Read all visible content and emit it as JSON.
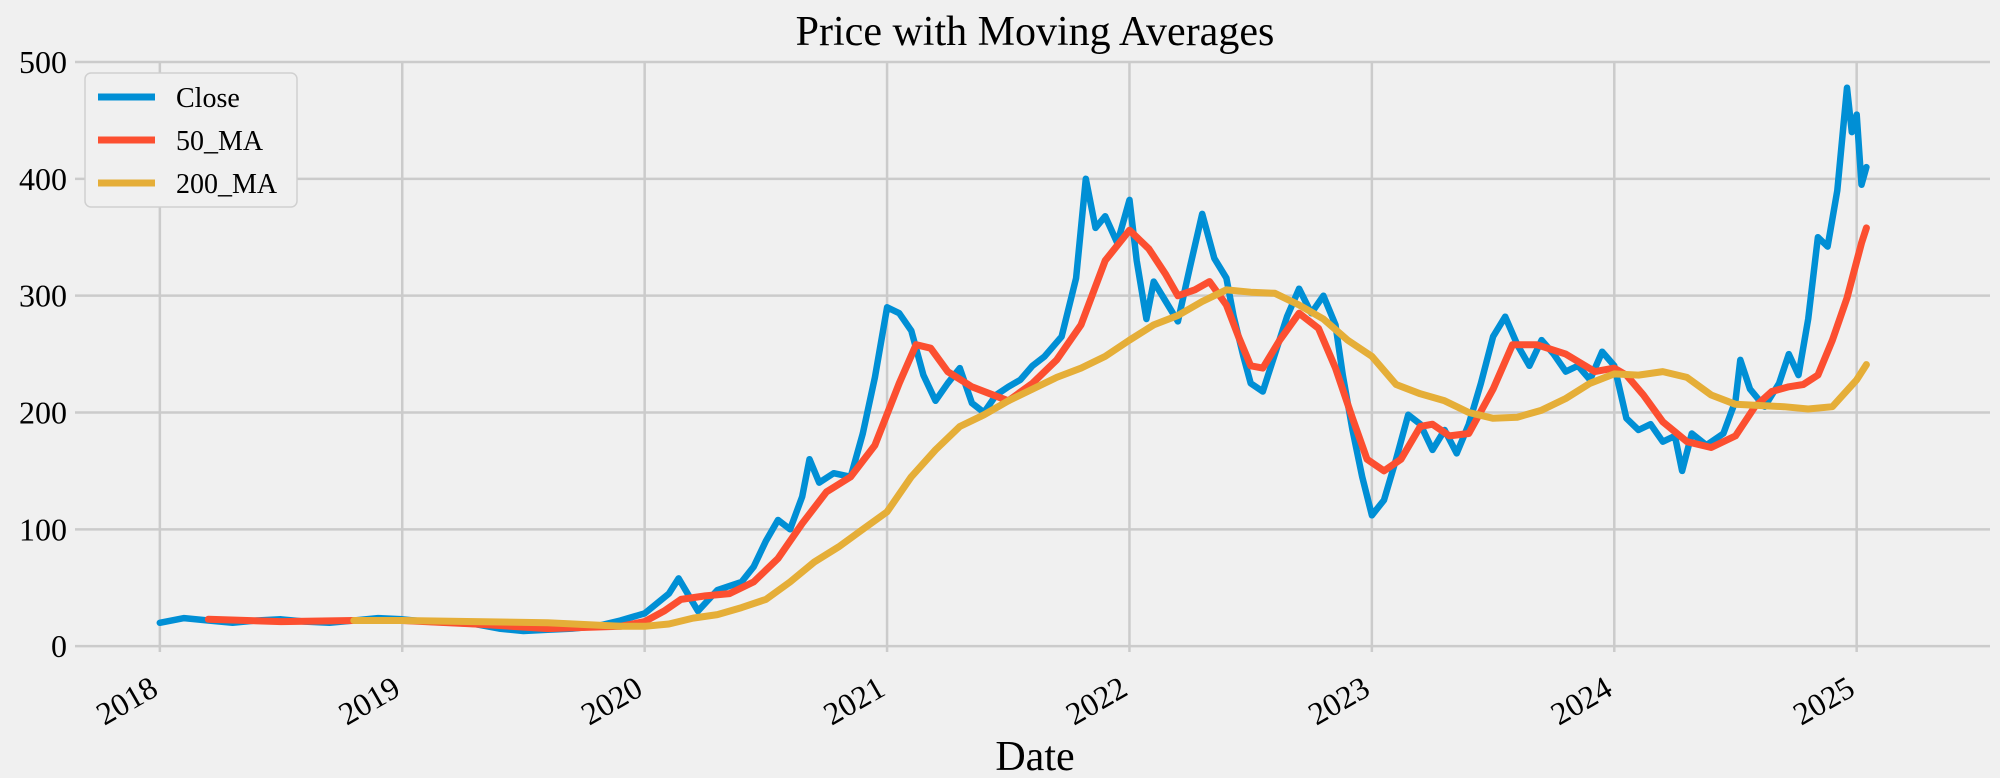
{
  "chart_data": {
    "type": "line",
    "title": "Price with Moving Averages",
    "xlabel": "Date",
    "ylabel": "",
    "xlim": [
      2017.65,
      2025.55
    ],
    "ylim": [
      -5,
      500
    ],
    "xticks": [
      2018,
      2019,
      2020,
      2021,
      2022,
      2023,
      2024,
      2025
    ],
    "xtick_labels": [
      "2018",
      "2019",
      "2020",
      "2021",
      "2022",
      "2023",
      "2024",
      "2025"
    ],
    "yticks": [
      0,
      100,
      200,
      300,
      400,
      500
    ],
    "ytick_labels": [
      "0",
      "100",
      "200",
      "300",
      "400",
      "500"
    ],
    "grid": true,
    "legend_position": "top-left",
    "series": [
      {
        "name": "Close",
        "color": "#008fd5",
        "points": [
          [
            2018.0,
            20
          ],
          [
            2018.1,
            24
          ],
          [
            2018.2,
            22
          ],
          [
            2018.3,
            20
          ],
          [
            2018.4,
            22
          ],
          [
            2018.5,
            23
          ],
          [
            2018.6,
            21
          ],
          [
            2018.7,
            20
          ],
          [
            2018.8,
            22
          ],
          [
            2018.9,
            24
          ],
          [
            2019.0,
            23
          ],
          [
            2019.1,
            21
          ],
          [
            2019.2,
            20
          ],
          [
            2019.3,
            19
          ],
          [
            2019.4,
            15
          ],
          [
            2019.5,
            13
          ],
          [
            2019.6,
            14
          ],
          [
            2019.7,
            15
          ],
          [
            2019.8,
            17
          ],
          [
            2019.9,
            22
          ],
          [
            2020.0,
            28
          ],
          [
            2020.1,
            45
          ],
          [
            2020.14,
            58
          ],
          [
            2020.18,
            44
          ],
          [
            2020.22,
            30
          ],
          [
            2020.3,
            48
          ],
          [
            2020.4,
            55
          ],
          [
            2020.45,
            68
          ],
          [
            2020.5,
            90
          ],
          [
            2020.55,
            108
          ],
          [
            2020.6,
            100
          ],
          [
            2020.65,
            128
          ],
          [
            2020.68,
            160
          ],
          [
            2020.72,
            140
          ],
          [
            2020.78,
            148
          ],
          [
            2020.85,
            145
          ],
          [
            2020.9,
            182
          ],
          [
            2020.95,
            230
          ],
          [
            2021.0,
            290
          ],
          [
            2021.05,
            285
          ],
          [
            2021.1,
            270
          ],
          [
            2021.15,
            232
          ],
          [
            2021.2,
            210
          ],
          [
            2021.25,
            225
          ],
          [
            2021.3,
            238
          ],
          [
            2021.35,
            208
          ],
          [
            2021.4,
            200
          ],
          [
            2021.45,
            215
          ],
          [
            2021.5,
            222
          ],
          [
            2021.55,
            228
          ],
          [
            2021.6,
            240
          ],
          [
            2021.65,
            248
          ],
          [
            2021.72,
            265
          ],
          [
            2021.78,
            315
          ],
          [
            2021.82,
            400
          ],
          [
            2021.86,
            358
          ],
          [
            2021.9,
            368
          ],
          [
            2021.95,
            345
          ],
          [
            2022.0,
            382
          ],
          [
            2022.03,
            330
          ],
          [
            2022.07,
            280
          ],
          [
            2022.1,
            312
          ],
          [
            2022.15,
            295
          ],
          [
            2022.2,
            278
          ],
          [
            2022.25,
            325
          ],
          [
            2022.3,
            370
          ],
          [
            2022.35,
            332
          ],
          [
            2022.4,
            315
          ],
          [
            2022.43,
            282
          ],
          [
            2022.47,
            248
          ],
          [
            2022.5,
            225
          ],
          [
            2022.55,
            218
          ],
          [
            2022.6,
            250
          ],
          [
            2022.65,
            282
          ],
          [
            2022.7,
            306
          ],
          [
            2022.75,
            285
          ],
          [
            2022.8,
            300
          ],
          [
            2022.85,
            275
          ],
          [
            2022.88,
            232
          ],
          [
            2022.92,
            185
          ],
          [
            2022.96,
            145
          ],
          [
            2023.0,
            112
          ],
          [
            2023.05,
            125
          ],
          [
            2023.1,
            160
          ],
          [
            2023.15,
            198
          ],
          [
            2023.2,
            190
          ],
          [
            2023.25,
            168
          ],
          [
            2023.3,
            185
          ],
          [
            2023.35,
            165
          ],
          [
            2023.4,
            190
          ],
          [
            2023.45,
            225
          ],
          [
            2023.5,
            265
          ],
          [
            2023.55,
            282
          ],
          [
            2023.6,
            258
          ],
          [
            2023.65,
            240
          ],
          [
            2023.7,
            262
          ],
          [
            2023.75,
            250
          ],
          [
            2023.8,
            235
          ],
          [
            2023.85,
            240
          ],
          [
            2023.9,
            228
          ],
          [
            2023.95,
            252
          ],
          [
            2024.0,
            240
          ],
          [
            2024.05,
            195
          ],
          [
            2024.1,
            185
          ],
          [
            2024.15,
            190
          ],
          [
            2024.2,
            175
          ],
          [
            2024.25,
            180
          ],
          [
            2024.28,
            150
          ],
          [
            2024.32,
            182
          ],
          [
            2024.38,
            172
          ],
          [
            2024.45,
            182
          ],
          [
            2024.5,
            210
          ],
          [
            2024.52,
            245
          ],
          [
            2024.56,
            220
          ],
          [
            2024.62,
            205
          ],
          [
            2024.68,
            225
          ],
          [
            2024.72,
            250
          ],
          [
            2024.76,
            232
          ],
          [
            2024.8,
            280
          ],
          [
            2024.84,
            350
          ],
          [
            2024.88,
            342
          ],
          [
            2024.92,
            390
          ],
          [
            2024.96,
            478
          ],
          [
            2024.98,
            440
          ],
          [
            2025.0,
            455
          ],
          [
            2025.02,
            395
          ],
          [
            2025.04,
            410
          ]
        ]
      },
      {
        "name": "50_MA",
        "color": "#fc4f30",
        "points": [
          [
            2018.2,
            23
          ],
          [
            2018.5,
            21
          ],
          [
            2018.8,
            22
          ],
          [
            2019.0,
            22
          ],
          [
            2019.3,
            19
          ],
          [
            2019.6,
            15
          ],
          [
            2019.9,
            17
          ],
          [
            2020.0,
            21
          ],
          [
            2020.08,
            30
          ],
          [
            2020.15,
            40
          ],
          [
            2020.25,
            43
          ],
          [
            2020.35,
            45
          ],
          [
            2020.45,
            55
          ],
          [
            2020.55,
            75
          ],
          [
            2020.65,
            105
          ],
          [
            2020.75,
            132
          ],
          [
            2020.85,
            145
          ],
          [
            2020.95,
            172
          ],
          [
            2021.05,
            225
          ],
          [
            2021.12,
            258
          ],
          [
            2021.18,
            255
          ],
          [
            2021.25,
            235
          ],
          [
            2021.35,
            222
          ],
          [
            2021.5,
            210
          ],
          [
            2021.6,
            225
          ],
          [
            2021.7,
            245
          ],
          [
            2021.8,
            275
          ],
          [
            2021.9,
            330
          ],
          [
            2022.0,
            356
          ],
          [
            2022.08,
            340
          ],
          [
            2022.15,
            318
          ],
          [
            2022.2,
            300
          ],
          [
            2022.27,
            305
          ],
          [
            2022.33,
            312
          ],
          [
            2022.4,
            292
          ],
          [
            2022.45,
            265
          ],
          [
            2022.5,
            240
          ],
          [
            2022.55,
            238
          ],
          [
            2022.62,
            262
          ],
          [
            2022.7,
            285
          ],
          [
            2022.78,
            272
          ],
          [
            2022.85,
            238
          ],
          [
            2022.92,
            195
          ],
          [
            2022.98,
            160
          ],
          [
            2023.05,
            150
          ],
          [
            2023.12,
            160
          ],
          [
            2023.2,
            188
          ],
          [
            2023.25,
            190
          ],
          [
            2023.32,
            180
          ],
          [
            2023.4,
            182
          ],
          [
            2023.5,
            220
          ],
          [
            2023.58,
            258
          ],
          [
            2023.68,
            258
          ],
          [
            2023.8,
            250
          ],
          [
            2023.92,
            235
          ],
          [
            2024.0,
            238
          ],
          [
            2024.05,
            232
          ],
          [
            2024.12,
            215
          ],
          [
            2024.2,
            192
          ],
          [
            2024.3,
            175
          ],
          [
            2024.4,
            170
          ],
          [
            2024.5,
            180
          ],
          [
            2024.58,
            205
          ],
          [
            2024.65,
            218
          ],
          [
            2024.72,
            222
          ],
          [
            2024.78,
            224
          ],
          [
            2024.84,
            232
          ],
          [
            2024.9,
            262
          ],
          [
            2024.96,
            298
          ],
          [
            2025.02,
            345
          ],
          [
            2025.04,
            358
          ]
        ]
      },
      {
        "name": "200_MA",
        "color": "#e5ae38",
        "points": [
          [
            2018.8,
            22
          ],
          [
            2019.0,
            22
          ],
          [
            2019.3,
            21
          ],
          [
            2019.6,
            20
          ],
          [
            2019.9,
            17
          ],
          [
            2020.0,
            17
          ],
          [
            2020.1,
            19
          ],
          [
            2020.2,
            24
          ],
          [
            2020.3,
            27
          ],
          [
            2020.4,
            33
          ],
          [
            2020.5,
            40
          ],
          [
            2020.6,
            55
          ],
          [
            2020.7,
            72
          ],
          [
            2020.8,
            85
          ],
          [
            2020.9,
            100
          ],
          [
            2021.0,
            115
          ],
          [
            2021.1,
            145
          ],
          [
            2021.2,
            168
          ],
          [
            2021.3,
            188
          ],
          [
            2021.4,
            198
          ],
          [
            2021.5,
            210
          ],
          [
            2021.6,
            220
          ],
          [
            2021.7,
            230
          ],
          [
            2021.8,
            238
          ],
          [
            2021.9,
            248
          ],
          [
            2022.0,
            262
          ],
          [
            2022.1,
            275
          ],
          [
            2022.2,
            283
          ],
          [
            2022.3,
            295
          ],
          [
            2022.4,
            305
          ],
          [
            2022.5,
            303
          ],
          [
            2022.6,
            302
          ],
          [
            2022.7,
            292
          ],
          [
            2022.8,
            280
          ],
          [
            2022.9,
            262
          ],
          [
            2023.0,
            248
          ],
          [
            2023.1,
            224
          ],
          [
            2023.2,
            216
          ],
          [
            2023.3,
            210
          ],
          [
            2023.4,
            200
          ],
          [
            2023.5,
            195
          ],
          [
            2023.6,
            196
          ],
          [
            2023.7,
            202
          ],
          [
            2023.8,
            212
          ],
          [
            2023.9,
            225
          ],
          [
            2024.0,
            233
          ],
          [
            2024.1,
            232
          ],
          [
            2024.2,
            235
          ],
          [
            2024.3,
            230
          ],
          [
            2024.4,
            215
          ],
          [
            2024.5,
            207
          ],
          [
            2024.6,
            206
          ],
          [
            2024.7,
            205
          ],
          [
            2024.8,
            203
          ],
          [
            2024.9,
            205
          ],
          [
            2025.0,
            228
          ],
          [
            2025.04,
            241
          ]
        ]
      }
    ]
  }
}
